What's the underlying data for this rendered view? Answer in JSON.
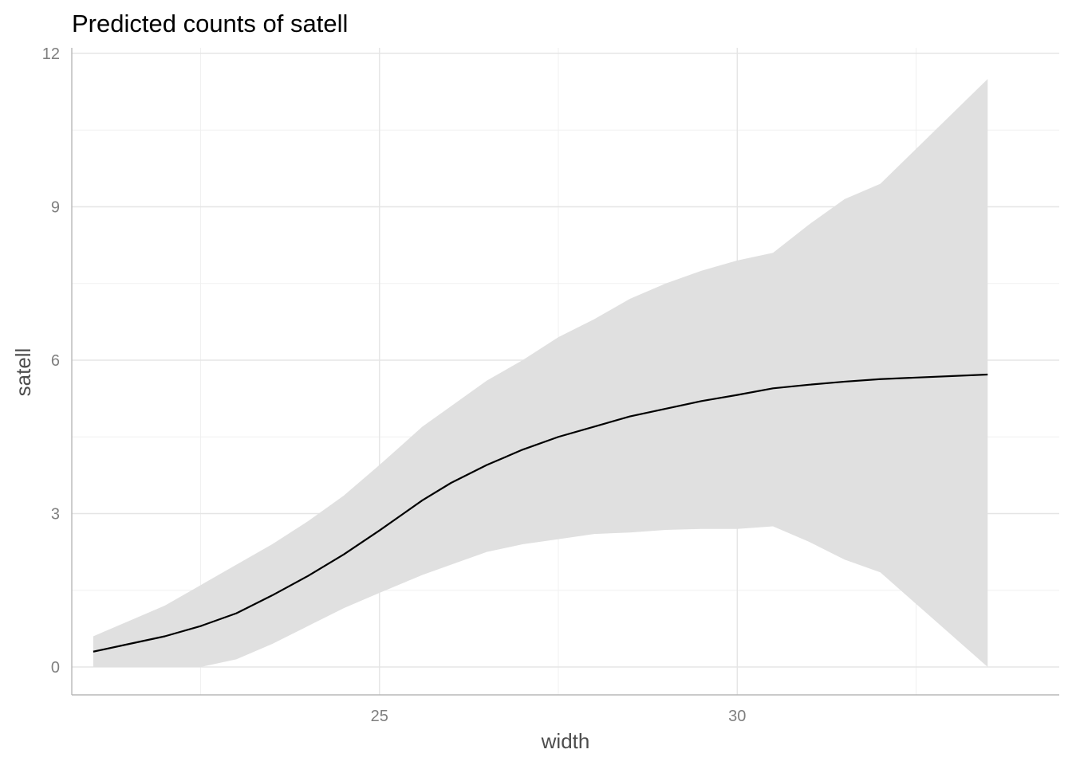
{
  "chart_data": {
    "type": "area",
    "title": "Predicted counts of satell",
    "xlabel": "width",
    "ylabel": "satell",
    "xlim": [
      20.7,
      34.5
    ],
    "ylim": [
      -0.55,
      12
    ],
    "x_ticks": [
      25,
      30
    ],
    "x_tick_labels": [
      "25",
      "30"
    ],
    "x_minor_ticks": [
      22.5,
      27.5,
      32.5
    ],
    "y_ticks": [
      0,
      3,
      6,
      9,
      12
    ],
    "y_tick_labels": [
      "0",
      "3",
      "6",
      "9",
      "12"
    ],
    "y_minor_ticks": [
      1.5,
      4.5,
      7.5,
      10.5
    ],
    "grid": true,
    "legend": "none",
    "colors": {
      "line": "#000000",
      "ribbon": "#e0e0e0"
    },
    "series": [
      {
        "x": [
          21.0,
          21.5,
          22.0,
          22.5,
          23.0,
          23.5,
          24.0,
          24.5,
          25.0,
          25.6,
          26.0,
          26.5,
          27.0,
          27.5,
          28.0,
          28.5,
          29.0,
          29.5,
          30.0,
          30.5,
          31.0,
          31.5,
          32.0,
          33.5
        ],
        "values": [
          0.3,
          0.45,
          0.6,
          0.8,
          1.05,
          1.4,
          1.78,
          2.2,
          2.67,
          3.26,
          3.6,
          3.95,
          4.25,
          4.5,
          4.7,
          4.9,
          5.05,
          5.2,
          5.32,
          5.45,
          5.52,
          5.58,
          5.63,
          5.72
        ],
        "lower": [
          0.0,
          0.0,
          0.0,
          0.0,
          0.15,
          0.45,
          0.8,
          1.15,
          1.45,
          1.8,
          2.0,
          2.25,
          2.4,
          2.5,
          2.6,
          2.63,
          2.68,
          2.7,
          2.7,
          2.75,
          2.45,
          2.1,
          1.85,
          0.0
        ],
        "upper": [
          0.6,
          0.9,
          1.2,
          1.6,
          2.0,
          2.4,
          2.85,
          3.35,
          3.95,
          4.7,
          5.1,
          5.6,
          6.0,
          6.45,
          6.8,
          7.2,
          7.5,
          7.75,
          7.95,
          8.1,
          8.65,
          9.15,
          9.45,
          11.5
        ]
      }
    ]
  }
}
